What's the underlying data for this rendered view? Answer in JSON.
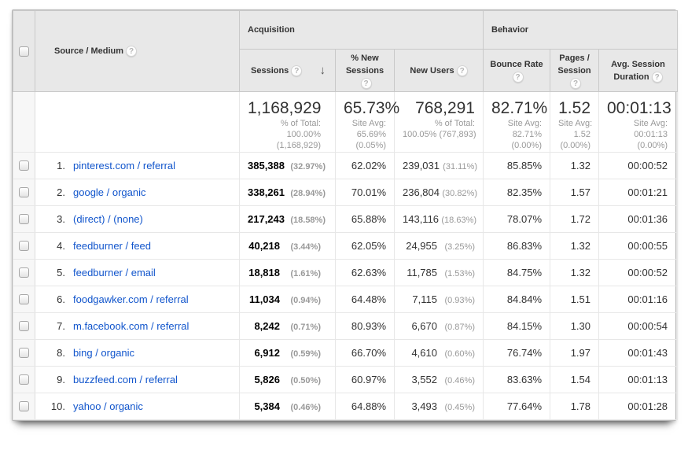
{
  "colors": {
    "link_blue": "#1155cc",
    "header_bg": "#e8e8e8"
  },
  "icons": {
    "help": "?",
    "sort_desc": "↓"
  },
  "header": {
    "source_medium": "Source / Medium",
    "groups": {
      "acquisition": "Acquisition",
      "behavior": "Behavior"
    },
    "columns": {
      "sessions": "Sessions",
      "pct_new_sessions": "% New Sessions",
      "new_users": "New Users",
      "bounce_rate": "Bounce Rate",
      "pages_session": "Pages / Session",
      "avg_session_duration": "Avg. Session Duration"
    }
  },
  "summary": {
    "sessions": {
      "value": "1,168,929",
      "sub": [
        "% of Total:",
        "100.00%",
        "(1,168,929)"
      ]
    },
    "pct_new_sessions": {
      "value": "65.73%",
      "sub": [
        "Site Avg:",
        "65.69%",
        "(0.05%)"
      ]
    },
    "new_users": {
      "value": "768,291",
      "sub": [
        "% of Total:",
        "100.05% (767,893)"
      ]
    },
    "bounce_rate": {
      "value": "82.71%",
      "sub": [
        "Site Avg:",
        "82.71%",
        "(0.00%)"
      ]
    },
    "pages_session": {
      "value": "1.52",
      "sub": [
        "Site Avg:",
        "1.52",
        "(0.00%)"
      ]
    },
    "avg_session_duration": {
      "value": "00:01:13",
      "sub": [
        "Site Avg:",
        "00:01:13",
        "(0.00%)"
      ]
    }
  },
  "rows": [
    {
      "rank": "1.",
      "source_medium": "pinterest.com / referral",
      "sessions": "385,388",
      "sessions_pct": "(32.97%)",
      "pct_new_sessions": "62.02%",
      "new_users": "239,031",
      "new_users_pct": "(31.11%)",
      "bounce_rate": "85.85%",
      "pages_session": "1.32",
      "avg_session_duration": "00:00:52"
    },
    {
      "rank": "2.",
      "source_medium": "google / organic",
      "sessions": "338,261",
      "sessions_pct": "(28.94%)",
      "pct_new_sessions": "70.01%",
      "new_users": "236,804",
      "new_users_pct": "(30.82%)",
      "bounce_rate": "82.35%",
      "pages_session": "1.57",
      "avg_session_duration": "00:01:21"
    },
    {
      "rank": "3.",
      "source_medium": "(direct) / (none)",
      "sessions": "217,243",
      "sessions_pct": "(18.58%)",
      "pct_new_sessions": "65.88%",
      "new_users": "143,116",
      "new_users_pct": "(18.63%)",
      "bounce_rate": "78.07%",
      "pages_session": "1.72",
      "avg_session_duration": "00:01:36"
    },
    {
      "rank": "4.",
      "source_medium": "feedburner / feed",
      "sessions": "40,218",
      "sessions_pct": "(3.44%)",
      "pct_new_sessions": "62.05%",
      "new_users": "24,955",
      "new_users_pct": "(3.25%)",
      "bounce_rate": "86.83%",
      "pages_session": "1.32",
      "avg_session_duration": "00:00:55"
    },
    {
      "rank": "5.",
      "source_medium": "feedburner / email",
      "sessions": "18,818",
      "sessions_pct": "(1.61%)",
      "pct_new_sessions": "62.63%",
      "new_users": "11,785",
      "new_users_pct": "(1.53%)",
      "bounce_rate": "84.75%",
      "pages_session": "1.32",
      "avg_session_duration": "00:00:52"
    },
    {
      "rank": "6.",
      "source_medium": "foodgawker.com / referral",
      "sessions": "11,034",
      "sessions_pct": "(0.94%)",
      "pct_new_sessions": "64.48%",
      "new_users": "7,115",
      "new_users_pct": "(0.93%)",
      "bounce_rate": "84.84%",
      "pages_session": "1.51",
      "avg_session_duration": "00:01:16"
    },
    {
      "rank": "7.",
      "source_medium": "m.facebook.com / referral",
      "sessions": "8,242",
      "sessions_pct": "(0.71%)",
      "pct_new_sessions": "80.93%",
      "new_users": "6,670",
      "new_users_pct": "(0.87%)",
      "bounce_rate": "84.15%",
      "pages_session": "1.30",
      "avg_session_duration": "00:00:54"
    },
    {
      "rank": "8.",
      "source_medium": "bing / organic",
      "sessions": "6,912",
      "sessions_pct": "(0.59%)",
      "pct_new_sessions": "66.70%",
      "new_users": "4,610",
      "new_users_pct": "(0.60%)",
      "bounce_rate": "76.74%",
      "pages_session": "1.97",
      "avg_session_duration": "00:01:43"
    },
    {
      "rank": "9.",
      "source_medium": "buzzfeed.com / referral",
      "sessions": "5,826",
      "sessions_pct": "(0.50%)",
      "pct_new_sessions": "60.97%",
      "new_users": "3,552",
      "new_users_pct": "(0.46%)",
      "bounce_rate": "83.63%",
      "pages_session": "1.54",
      "avg_session_duration": "00:01:13"
    },
    {
      "rank": "10.",
      "source_medium": "yahoo / organic",
      "sessions": "5,384",
      "sessions_pct": "(0.46%)",
      "pct_new_sessions": "64.88%",
      "new_users": "3,493",
      "new_users_pct": "(0.45%)",
      "bounce_rate": "77.64%",
      "pages_session": "1.78",
      "avg_session_duration": "00:01:28"
    }
  ]
}
